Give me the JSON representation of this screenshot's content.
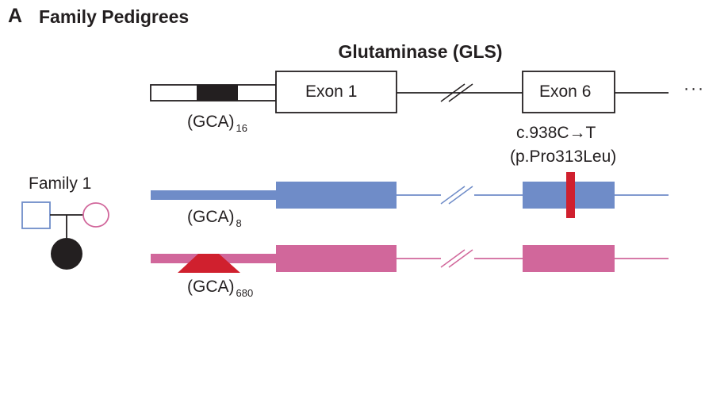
{
  "panel": {
    "letter": "A",
    "title": "Family Pedigrees"
  },
  "gene": {
    "title": "Glutaminase (GLS)",
    "exon1_label": "Exon 1",
    "exon6_label": "Exon 6",
    "ellipsis": "···",
    "repeat_label": "(GCA)",
    "repeat_count": "16"
  },
  "variant": {
    "cdna": "c.938C→T",
    "protein": "(p.Pro313Leu)",
    "color": "#d0202e"
  },
  "family": {
    "label": "Family 1",
    "paternal_allele": {
      "repeat_label": "(GCA)",
      "repeat_count": "8",
      "color": "#6f8cc8"
    },
    "maternal_allele": {
      "repeat_label": "(GCA)",
      "repeat_count": "680",
      "color": "#d1679b",
      "expansion_color": "#d0202e"
    }
  }
}
